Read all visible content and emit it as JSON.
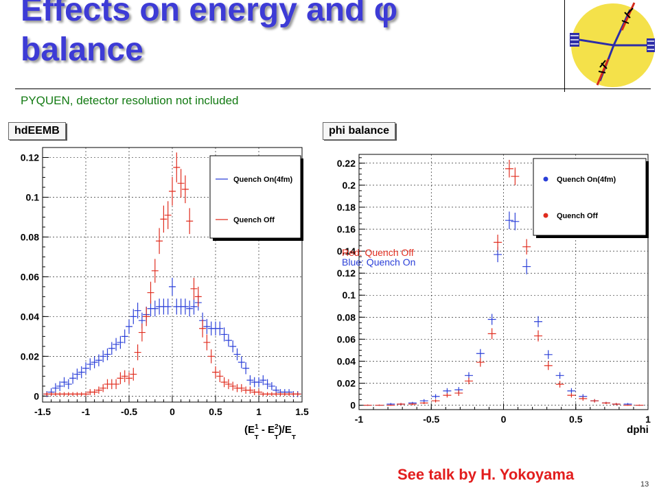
{
  "slide": {
    "title_line1": "Effects on energy and φ",
    "title_line2": "balance",
    "subtitle": "PYQUEN, detector resolution not included",
    "footer_note": "See talk by H. Yokoyama",
    "page_number": "13"
  },
  "colors": {
    "title": "#3d3bd6",
    "subtitle": "#127a12",
    "quench_on": "#2a3fd8",
    "quench_off": "#e02c1e",
    "footer": "#e21d1d",
    "logo_fill": "#f4e14a"
  },
  "chart_data": [
    {
      "type": "scatter",
      "name": "hdEEMB",
      "xlim": [
        -1.5,
        1.5
      ],
      "ylim": [
        -0.003,
        0.125
      ],
      "xticks": [
        "-1.5",
        "-1",
        "-0.5",
        "0",
        "0.5",
        "1",
        "1.5"
      ],
      "yticks": [
        "0",
        "0.02",
        "0.04",
        "0.06",
        "0.08",
        "0.1",
        "0.12"
      ],
      "xlabel": {
        "base": "(E",
        "sup1": "1",
        "sub1": "T",
        "mid": " - E",
        "sup2": "2",
        "sub2": "T",
        "mid2": ")/E",
        "sub3": "T"
      },
      "grid": true,
      "legend": {
        "placement": "top-right",
        "entries": [
          "Quench On(4fm)",
          "Quench Off"
        ],
        "style": "line"
      },
      "series": [
        {
          "name": "Quench On(4fm)",
          "color": "#2a3fd8",
          "x": [
            -1.45,
            -1.4,
            -1.35,
            -1.3,
            -1.25,
            -1.2,
            -1.15,
            -1.1,
            -1.05,
            -1.0,
            -0.95,
            -0.9,
            -0.85,
            -0.8,
            -0.75,
            -0.7,
            -0.65,
            -0.6,
            -0.55,
            -0.5,
            -0.45,
            -0.4,
            -0.35,
            -0.3,
            -0.25,
            -0.2,
            -0.15,
            -0.1,
            -0.05,
            0.0,
            0.05,
            0.1,
            0.15,
            0.2,
            0.25,
            0.3,
            0.35,
            0.4,
            0.45,
            0.5,
            0.55,
            0.6,
            0.65,
            0.7,
            0.75,
            0.8,
            0.85,
            0.9,
            0.95,
            1.0,
            1.05,
            1.1,
            1.15,
            1.2,
            1.25,
            1.3,
            1.35,
            1.4,
            1.45
          ],
          "y": [
            0.001,
            0.002,
            0.004,
            0.005,
            0.007,
            0.006,
            0.009,
            0.011,
            0.012,
            0.014,
            0.016,
            0.017,
            0.018,
            0.02,
            0.021,
            0.024,
            0.026,
            0.027,
            0.03,
            0.035,
            0.04,
            0.043,
            0.038,
            0.041,
            0.044,
            0.044,
            0.045,
            0.045,
            0.045,
            0.055,
            0.045,
            0.045,
            0.045,
            0.044,
            0.045,
            0.047,
            0.038,
            0.035,
            0.034,
            0.034,
            0.034,
            0.031,
            0.028,
            0.025,
            0.021,
            0.017,
            0.014,
            0.008,
            0.007,
            0.007,
            0.008,
            0.006,
            0.005,
            0.003,
            0.002,
            0.002,
            0.002,
            0.001,
            0.001
          ],
          "err": [
            0.0015,
            0.002,
            0.0025,
            0.0025,
            0.0025,
            0.0025,
            0.0028,
            0.0028,
            0.003,
            0.003,
            0.003,
            0.003,
            0.003,
            0.003,
            0.003,
            0.0032,
            0.0032,
            0.0032,
            0.0035,
            0.0035,
            0.0038,
            0.004,
            0.004,
            0.004,
            0.004,
            0.004,
            0.004,
            0.004,
            0.004,
            0.0045,
            0.004,
            0.004,
            0.004,
            0.004,
            0.004,
            0.004,
            0.004,
            0.0038,
            0.0035,
            0.0035,
            0.0035,
            0.0035,
            0.0032,
            0.003,
            0.003,
            0.003,
            0.003,
            0.0025,
            0.0025,
            0.0025,
            0.0025,
            0.0025,
            0.002,
            0.002,
            0.0015,
            0.0015,
            0.0015,
            0.0015,
            0.0015
          ]
        },
        {
          "name": "Quench Off",
          "color": "#e02c1e",
          "x": [
            -1.45,
            -1.4,
            -1.35,
            -1.3,
            -1.25,
            -1.2,
            -1.15,
            -1.1,
            -1.05,
            -1.0,
            -0.95,
            -0.9,
            -0.85,
            -0.8,
            -0.75,
            -0.7,
            -0.65,
            -0.6,
            -0.55,
            -0.5,
            -0.45,
            -0.4,
            -0.35,
            -0.3,
            -0.25,
            -0.2,
            -0.15,
            -0.1,
            -0.05,
            0.0,
            0.05,
            0.1,
            0.15,
            0.2,
            0.25,
            0.3,
            0.35,
            0.4,
            0.45,
            0.5,
            0.55,
            0.6,
            0.65,
            0.7,
            0.75,
            0.8,
            0.85,
            0.9,
            0.95,
            1.0,
            1.05,
            1.1,
            1.15,
            1.2,
            1.25,
            1.3,
            1.35,
            1.4,
            1.45
          ],
          "y": [
            0.001,
            0.001,
            0.001,
            0.001,
            0.001,
            0.001,
            0.001,
            0.001,
            0.001,
            0.001,
            0.002,
            0.002,
            0.003,
            0.004,
            0.006,
            0.006,
            0.006,
            0.009,
            0.01,
            0.009,
            0.011,
            0.022,
            0.032,
            0.04,
            0.052,
            0.063,
            0.078,
            0.089,
            0.091,
            0.103,
            0.115,
            0.107,
            0.104,
            0.088,
            0.054,
            0.05,
            0.034,
            0.027,
            0.02,
            0.012,
            0.01,
            0.007,
            0.006,
            0.005,
            0.004,
            0.004,
            0.003,
            0.003,
            0.002,
            0.002,
            0.001,
            0.001,
            0.001,
            0.001,
            0.001,
            0.001,
            0.001,
            0.001,
            0.001
          ],
          "err": [
            0.001,
            0.001,
            0.001,
            0.001,
            0.001,
            0.001,
            0.001,
            0.001,
            0.001,
            0.001,
            0.0015,
            0.0015,
            0.0018,
            0.002,
            0.0025,
            0.0025,
            0.0025,
            0.003,
            0.003,
            0.003,
            0.0032,
            0.004,
            0.0045,
            0.0048,
            0.0055,
            0.006,
            0.0065,
            0.0068,
            0.007,
            0.0072,
            0.0075,
            0.0072,
            0.007,
            0.0065,
            0.0055,
            0.005,
            0.0045,
            0.004,
            0.0035,
            0.003,
            0.003,
            0.0025,
            0.0025,
            0.0022,
            0.002,
            0.002,
            0.0018,
            0.0018,
            0.0015,
            0.0015,
            0.001,
            0.001,
            0.001,
            0.001,
            0.001,
            0.001,
            0.001,
            0.001,
            0.001
          ]
        }
      ]
    },
    {
      "type": "scatter",
      "name": "phi balance",
      "xlim": [
        -1,
        1
      ],
      "ylim": [
        -0.004,
        0.228
      ],
      "xticks": [
        "-1",
        "-0.5",
        "0",
        "0.5",
        "1"
      ],
      "yticks": [
        "0",
        "0.02",
        "0.04",
        "0.06",
        "0.08",
        "0.1",
        "0.12",
        "0.14",
        "0.16",
        "0.18",
        "0.2",
        "0.22"
      ],
      "xlabel": "dphi",
      "grid": true,
      "legend": {
        "placement": "top-right",
        "entries": [
          "Quench On(4fm)",
          "Quench Off"
        ],
        "style": "marker"
      },
      "annotations": [
        {
          "text": "Red: Quench Off",
          "color": "#e02c1e"
        },
        {
          "text": "Blue: Quench On",
          "color": "#2a3fd8"
        }
      ],
      "series": [
        {
          "name": "Quench On(4fm)",
          "color": "#2a3fd8",
          "x": [
            -0.94,
            -0.86,
            -0.78,
            -0.71,
            -0.63,
            -0.55,
            -0.47,
            -0.39,
            -0.31,
            -0.24,
            -0.16,
            -0.08,
            -0.04,
            0.04,
            0.08,
            0.16,
            0.24,
            0.31,
            0.39,
            0.47,
            0.55,
            0.63,
            0.71,
            0.78,
            0.86,
            0.94
          ],
          "y": [
            0.0,
            0.0,
            0.001,
            0.001,
            0.002,
            0.004,
            0.008,
            0.013,
            0.014,
            0.027,
            0.047,
            0.078,
            0.137,
            0.168,
            0.167,
            0.126,
            0.076,
            0.046,
            0.027,
            0.013,
            0.008,
            0.004,
            0.002,
            0.001,
            0.001,
            0.0
          ],
          "err": [
            0.0005,
            0.0005,
            0.001,
            0.001,
            0.001,
            0.0015,
            0.002,
            0.0025,
            0.0025,
            0.003,
            0.004,
            0.005,
            0.007,
            0.008,
            0.008,
            0.007,
            0.005,
            0.004,
            0.003,
            0.0025,
            0.002,
            0.0015,
            0.001,
            0.001,
            0.001,
            0.0005
          ]
        },
        {
          "name": "Quench Off",
          "color": "#e02c1e",
          "x": [
            -0.94,
            -0.86,
            -0.78,
            -0.71,
            -0.63,
            -0.55,
            -0.47,
            -0.39,
            -0.31,
            -0.24,
            -0.16,
            -0.08,
            -0.04,
            0.04,
            0.08,
            0.16,
            0.24,
            0.31,
            0.39,
            0.47,
            0.55,
            0.63,
            0.71,
            0.78,
            0.86,
            0.94
          ],
          "y": [
            0.0,
            0.0,
            0.0,
            0.001,
            0.001,
            0.002,
            0.004,
            0.009,
            0.011,
            0.022,
            0.039,
            0.065,
            0.148,
            0.215,
            0.208,
            0.144,
            0.063,
            0.036,
            0.019,
            0.009,
            0.006,
            0.004,
            0.002,
            0.001,
            0.0,
            0.0
          ],
          "err": [
            0.0005,
            0.0005,
            0.0005,
            0.001,
            0.001,
            0.001,
            0.0015,
            0.002,
            0.0025,
            0.003,
            0.004,
            0.005,
            0.007,
            0.008,
            0.008,
            0.007,
            0.005,
            0.004,
            0.003,
            0.002,
            0.002,
            0.0015,
            0.001,
            0.001,
            0.0005,
            0.0005
          ]
        }
      ]
    }
  ]
}
